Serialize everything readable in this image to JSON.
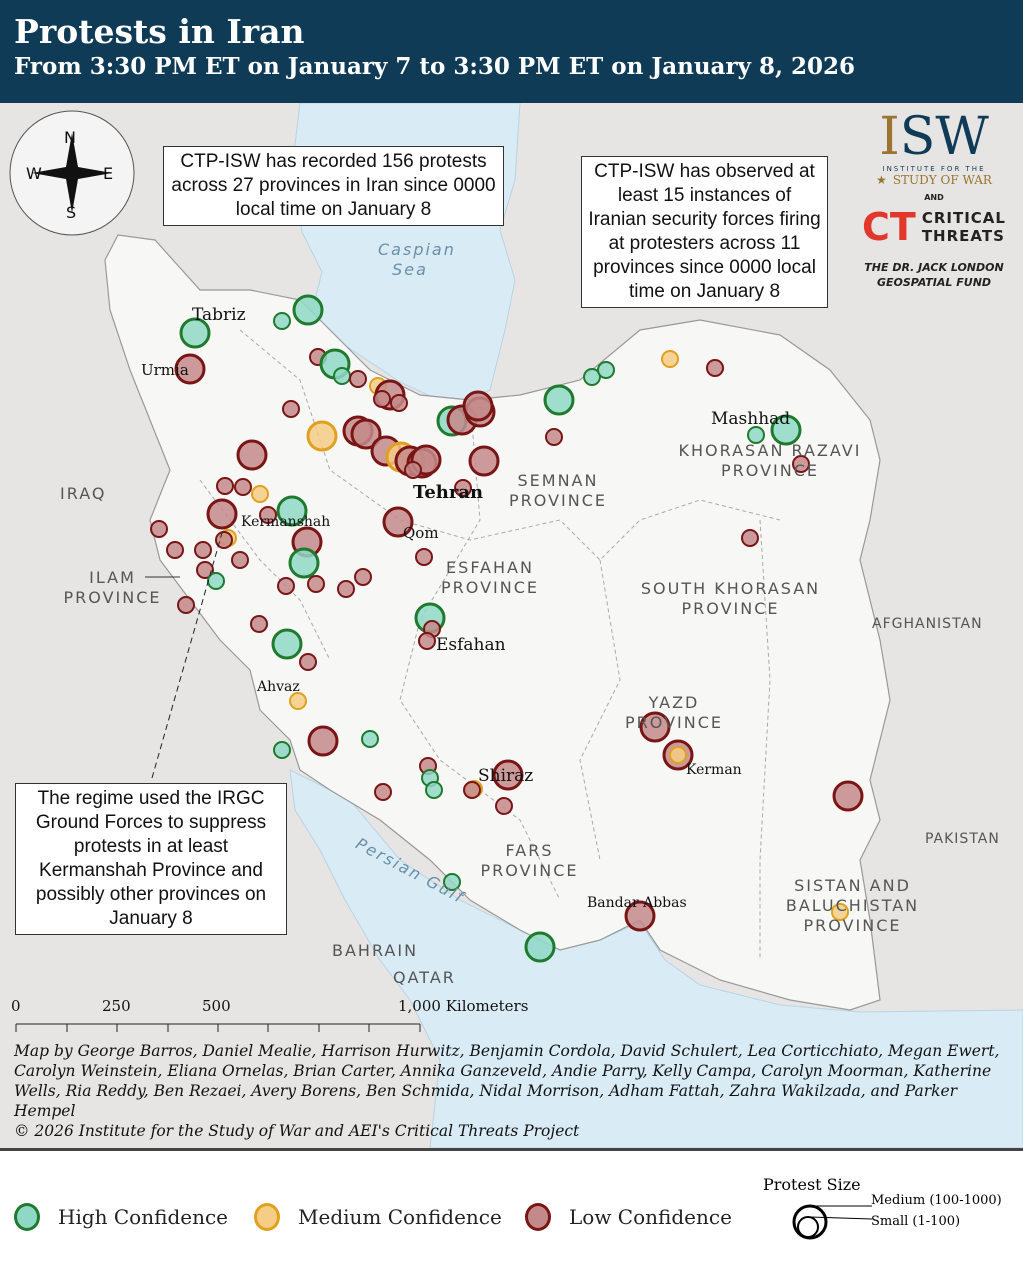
{
  "header": {
    "title": "Protests in Iran",
    "subtitle": "From 3:30 PM ET on January 7 to 3:30 PM ET on January 8, 2026"
  },
  "colors": {
    "header_bg": "#0f3b57",
    "high": "#1f7a2e",
    "high_fill": "#8fd8c6",
    "medium": "#e0a020",
    "medium_fill": "#f5cd85",
    "low": "#7a1515",
    "low_fill": "#c48a8a",
    "water": "#d9ecf6",
    "land": "#e6e5e3",
    "iran": "#f7f7f6"
  },
  "compass": {
    "n": "N",
    "s": "S",
    "e": "E",
    "w": "W"
  },
  "callouts": {
    "protests": "CTP-ISW has recorded 156 protests across 27 provinces in Iran since 0000 local time on January 8",
    "firing": "CTP-ISW has observed at least 15 instances of Iranian security forces firing at protesters across 11 provinces since 0000 local time on January 8",
    "irgc": "The regime used the IRGC Ground Forces to suppress protests in at least Kermanshah Province and possibly other provinces on January 8"
  },
  "logos": {
    "isw": "ISW",
    "isw_sub1": "INSTITUTE FOR THE",
    "isw_sub2": "STUDY OF WAR",
    "and": "AND",
    "ct": "CT",
    "ct_name1": "CRITICAL",
    "ct_name2": "THREATS",
    "fund1": "THE DR. JACK LONDON",
    "fund2": "GEOSPATIAL FUND"
  },
  "regions": {
    "caspian": "Caspian Sea",
    "persian_gulf": "Persian Gulf",
    "iraq": "IRAQ",
    "afghanistan": "AFGHANISTAN",
    "pakistan": "PAKISTAN",
    "bahrain": "BAHRAIN",
    "qatar": "QATAR",
    "semnan": "SEMNAN PROVINCE",
    "khorasan_razavi": "KHORASAN RAZAVI PROVINCE",
    "south_khorasan": "SOUTH KHORASAN PROVINCE",
    "esfahan": "ESFAHAN PROVINCE",
    "ilam": "ILAM PROVINCE",
    "yazd": "YAZD PROVINCE",
    "fars": "FARS PROVINCE",
    "sistan": "SISTAN AND BALUCHISTAN PROVINCE"
  },
  "cities": {
    "tabriz": "Tabriz",
    "urmia": "Urmia",
    "tehran": "Tehran",
    "qom": "Qom",
    "kermanshah": "Kermanshah",
    "esfahan": "Esfahan",
    "ahvaz": "Ahvaz",
    "shiraz": "Shiraz",
    "kerman": "Kerman",
    "mashhad": "Mashhad",
    "bandar_abbas": "Bandar Abbas"
  },
  "scale": {
    "ticks": [
      "0",
      "250",
      "500",
      "1,000 Kilometers"
    ]
  },
  "credits": {
    "authors": "Map by George Barros, Daniel Mealie, Harrison Hurwitz, Benjamin Cordola, David Schulert, Lea Corticchiato, Megan Ewert, Carolyn Weinstein, Eliana Ornelas, Brian Carter, Annika Ganzeveld, Andie Parry, Kelly Campa, Carolyn Moorman, Katherine Wells, Ria Reddy, Ben Rezaei, Avery Borens, Ben Schmida, Nidal Morrison, Adham Fattah, Zahra Wakilzada, and Parker Hempel",
    "copyright": "© 2026 Institute for the Study of War and AEI's Critical Threats Project"
  },
  "legend": {
    "high": "High Confidence",
    "medium": "Medium Confidence",
    "low": "Low Confidence",
    "size_title": "Protest Size",
    "medium_size": "Medium (100-1000)",
    "small_size": "Small (1-100)"
  }
}
